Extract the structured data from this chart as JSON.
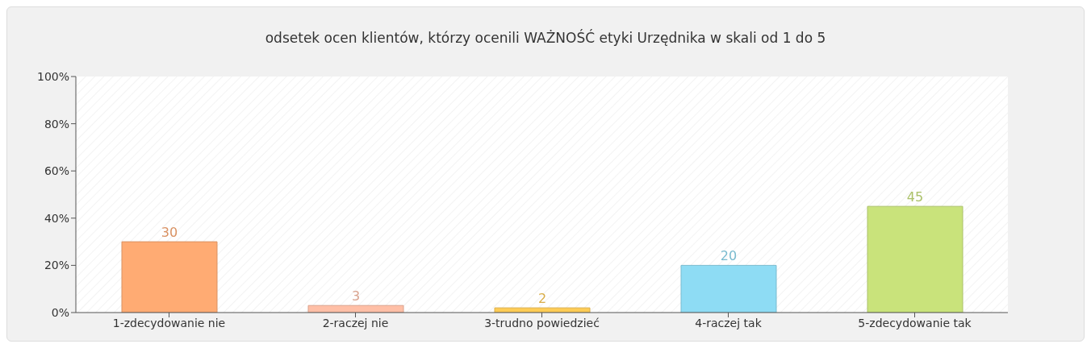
{
  "chart_data": {
    "type": "bar",
    "title": "odsetek ocen klientów, którzy ocenili WAŻNOŚĆ etyki Urzędnika w skali od 1 do 5",
    "categories": [
      "1-zdecydowanie nie",
      "2-raczej nie",
      "3-trudno powiedzieć",
      "4-raczej tak",
      "5-zdecydowanie tak"
    ],
    "values": [
      30,
      3,
      2,
      20,
      45
    ],
    "colors": [
      "#ffab73",
      "#ffbfa6",
      "#ffcc55",
      "#8edcf4",
      "#c9e37b"
    ],
    "ylim": [
      0,
      100
    ],
    "yticks": [
      {
        "value": 0,
        "label": "0%"
      },
      {
        "value": 20,
        "label": "20%"
      },
      {
        "value": 40,
        "label": "40%"
      },
      {
        "value": 60,
        "label": "60%"
      },
      {
        "value": 80,
        "label": "80%"
      },
      {
        "value": 100,
        "label": "100%"
      }
    ],
    "data_labels": true
  }
}
